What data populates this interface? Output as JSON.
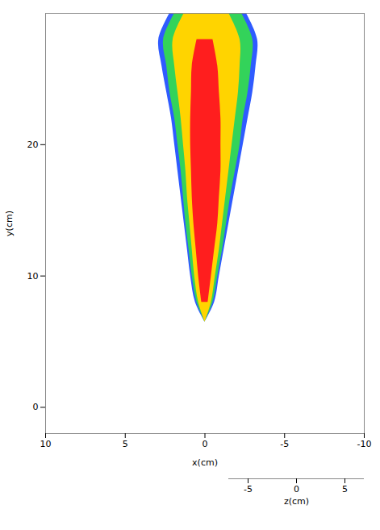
{
  "chart_data": {
    "type": "area",
    "x_label": "x(cm)",
    "y_label": "y(cm)",
    "z_label": "z(cm)",
    "xlim": [
      10,
      -10
    ],
    "xticks": [
      10,
      5,
      0,
      -5,
      -10
    ],
    "ylim": [
      -2,
      30
    ],
    "yticks": [
      0,
      10,
      20
    ],
    "zlim": [
      -7,
      7
    ],
    "zticks": [
      -5,
      0,
      5
    ],
    "y": [
      6.5,
      8,
      10,
      12,
      14,
      16,
      18,
      20,
      22,
      24,
      26,
      28,
      30
    ],
    "series": [
      {
        "color": "#2f5bff",
        "x1": [
          0,
          -0.6,
          -0.9,
          -1.2,
          -1.5,
          -1.8,
          -2.1,
          -2.4,
          -2.7,
          -3.0,
          -3.2,
          -3.3,
          -2.6
        ],
        "x2": [
          0,
          0.6,
          0.9,
          1.1,
          1.3,
          1.5,
          1.7,
          1.9,
          2.1,
          2.4,
          2.7,
          2.9,
          2.2
        ]
      },
      {
        "color": "#33d35a",
        "x1": [
          0,
          -0.5,
          -0.8,
          -1.1,
          -1.35,
          -1.6,
          -1.9,
          -2.2,
          -2.4,
          -2.7,
          -2.9,
          -3.0,
          -2.3
        ],
        "x2": [
          0,
          0.5,
          0.8,
          1.0,
          1.2,
          1.35,
          1.5,
          1.7,
          1.9,
          2.2,
          2.4,
          2.6,
          1.9
        ]
      },
      {
        "color": "#ffd400",
        "x1": [
          0,
          -0.4,
          -0.65,
          -0.9,
          -1.1,
          -1.3,
          -1.5,
          -1.7,
          -1.9,
          -2.1,
          -2.2,
          -2.2,
          -1.5
        ],
        "x2": [
          0,
          0.4,
          0.65,
          0.8,
          0.95,
          1.1,
          1.2,
          1.35,
          1.5,
          1.7,
          1.9,
          2.0,
          1.3
        ]
      },
      {
        "color": "#ff1e1e",
        "x1": [
          null,
          -0.2,
          -0.4,
          -0.6,
          -0.8,
          -0.9,
          -1.0,
          -1.0,
          -1.0,
          -0.9,
          -0.8,
          -0.5,
          null
        ],
        "x2": [
          null,
          0.2,
          0.4,
          0.55,
          0.7,
          0.8,
          0.85,
          0.9,
          0.9,
          0.85,
          0.8,
          0.5,
          null
        ]
      }
    ]
  }
}
